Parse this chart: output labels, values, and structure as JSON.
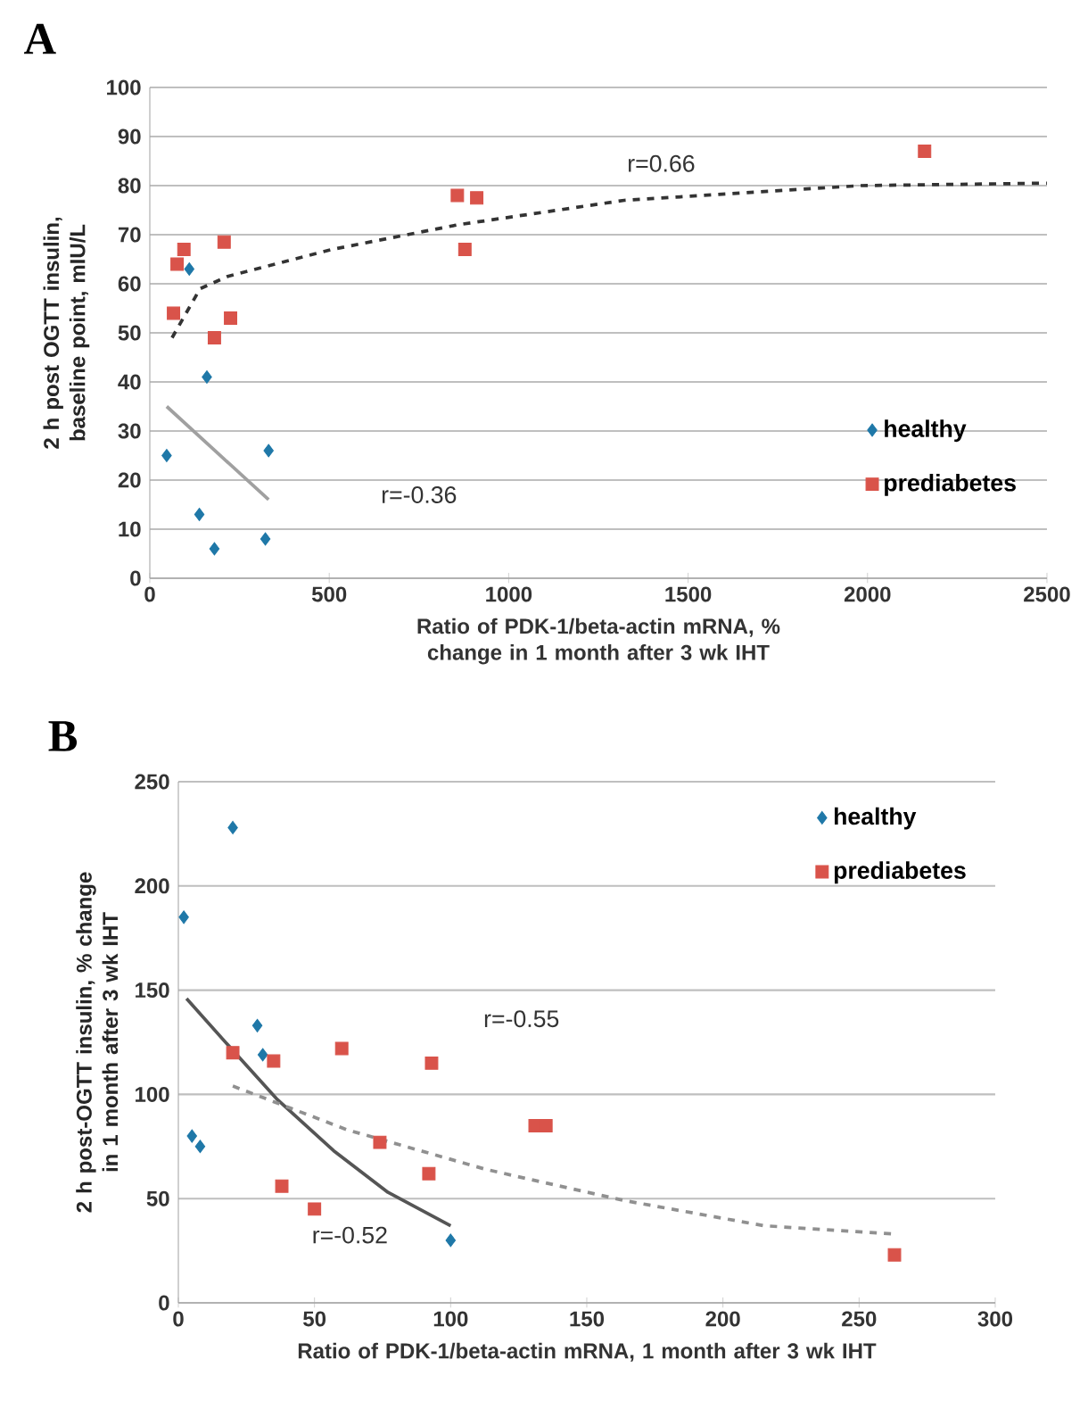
{
  "chart_data": [
    {
      "type": "scatter",
      "title": "A",
      "xlabel": "Ratio of PDK-1/beta-actin mRNA, % change in 1 month after 3 wk IHT",
      "ylabel": "2 h post OGTT insulin, baseline point, mIU/L",
      "xlim": [
        0,
        2500
      ],
      "ylim": [
        0,
        100
      ],
      "xticks": [
        0,
        500,
        1000,
        1500,
        2000,
        2500
      ],
      "yticks": [
        0,
        10,
        20,
        30,
        40,
        50,
        60,
        70,
        80,
        90,
        100
      ],
      "grid": "y",
      "legend": "bottom right",
      "series": [
        {
          "name": "healthy",
          "color": "#1f78a8",
          "marker": "diamond",
          "x": [
            47,
            110,
            159,
            138,
            180,
            331,
            322
          ],
          "values": [
            25,
            63,
            41,
            13,
            6,
            26,
            8
          ]
        },
        {
          "name": "prediabetes",
          "color": "#d9534a",
          "marker": "square",
          "x": [
            76,
            95,
            66,
            207,
            180,
            225,
            857,
            911,
            878,
            2159
          ],
          "values": [
            64,
            67,
            54,
            68.5,
            49,
            53,
            78,
            77.5,
            67,
            87
          ]
        },
        {
          "type": "line",
          "color": "#333333",
          "marker": "none",
          "line_style": "dashed",
          "x": [
            62,
            140,
            217,
            508,
            857,
            1322,
            1981,
            2500
          ],
          "values": [
            49,
            59,
            61.5,
            67,
            72,
            77,
            80,
            80.5
          ]
        },
        {
          "type": "line",
          "color": "#a0a0a0",
          "marker": "none",
          "line_style": "solid",
          "x": [
            47,
            331
          ],
          "values": [
            35,
            16
          ]
        }
      ],
      "annotations": [
        "r=0.66",
        "r=-0.36"
      ]
    },
    {
      "type": "scatter",
      "title": "B",
      "xlabel": "Ratio of PDK-1/beta-actin mRNA, 1 month after 3 wk IHT",
      "ylabel": "2 h post-OGTT insulin, % change in 1 month after 3 wk IHT",
      "xlim": [
        0,
        300
      ],
      "ylim": [
        0,
        250
      ],
      "xticks": [
        0,
        50,
        100,
        150,
        200,
        250,
        300
      ],
      "yticks": [
        0,
        50,
        100,
        150,
        200,
        250
      ],
      "grid": "y",
      "legend": "top right",
      "series": [
        {
          "name": "healthy",
          "color": "#1f78a8",
          "marker": "diamond",
          "x": [
            2,
            20,
            5,
            8,
            29,
            31,
            100
          ],
          "values": [
            185,
            228,
            80,
            75,
            133,
            119,
            30
          ]
        },
        {
          "name": "prediabetes",
          "color": "#d9534a",
          "marker": "square",
          "x": [
            20,
            35,
            60,
            93,
            74,
            92,
            38,
            50,
            131,
            135,
            263
          ],
          "values": [
            120,
            116,
            122,
            115,
            77,
            62,
            56,
            45,
            85,
            85,
            23
          ]
        },
        {
          "type": "line",
          "color": "#555555",
          "marker": "none",
          "line_style": "solid",
          "x": [
            3,
            18,
            36,
            57,
            77,
            100
          ],
          "values": [
            146,
            124,
            98,
            73,
            53,
            37
          ]
        },
        {
          "type": "line",
          "color": "#909090",
          "marker": "none",
          "line_style": "dashed",
          "x": [
            20,
            62,
            113,
            164,
            215,
            263
          ],
          "values": [
            104,
            83,
            64,
            49,
            37,
            33
          ]
        }
      ],
      "annotations": [
        "r=-0.55",
        "r=-0.52"
      ]
    }
  ]
}
